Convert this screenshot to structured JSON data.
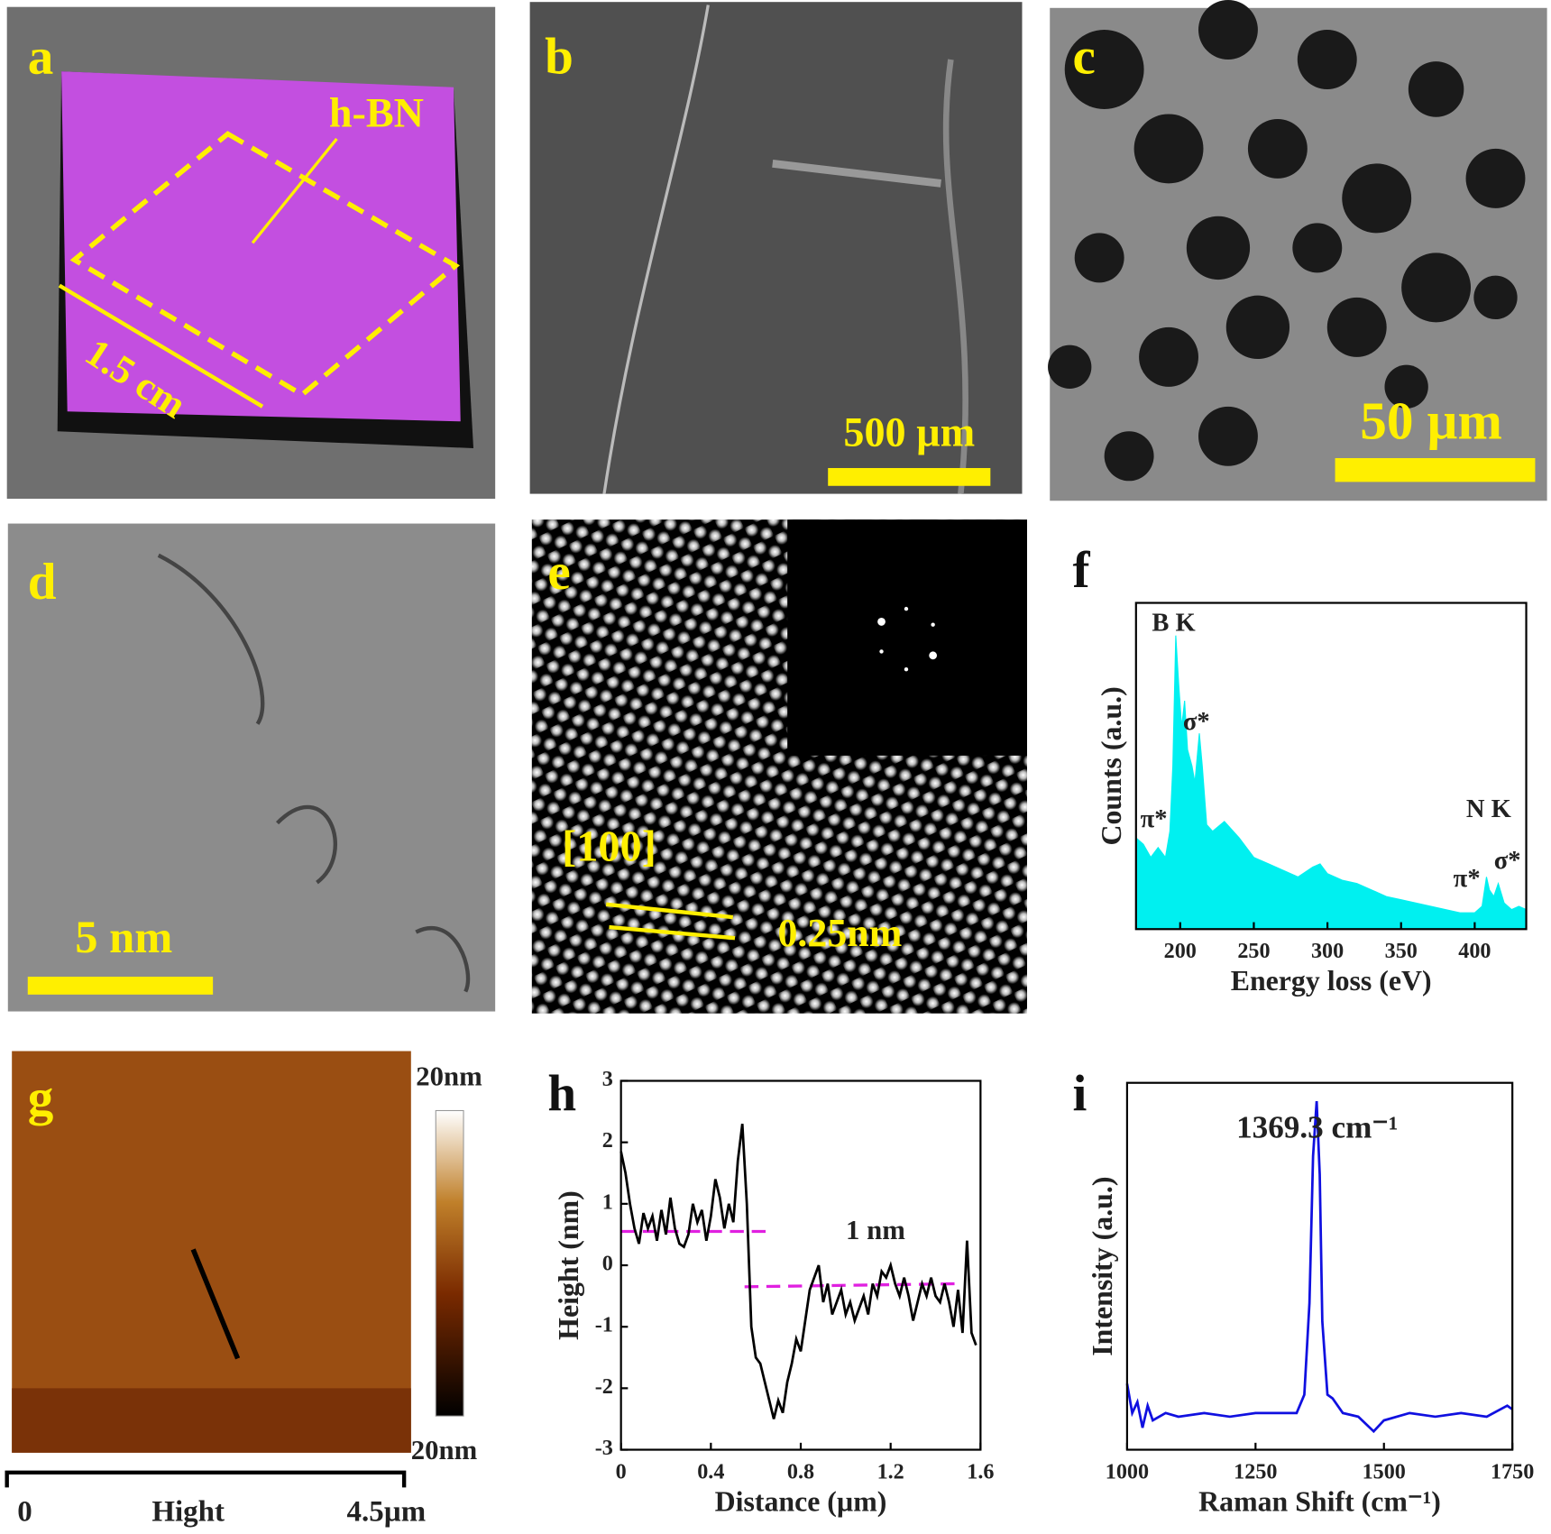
{
  "panel_labels": [
    "a",
    "b",
    "c",
    "d",
    "e",
    "f",
    "g",
    "h",
    "i"
  ],
  "images": {
    "a": {
      "annotation": "h-BN",
      "dimension": "1.5 cm"
    },
    "b": {
      "scale_bar": "500 µm"
    },
    "c": {
      "scale_bar": "50 µm"
    },
    "d": {
      "scale_bar": "5 nm"
    },
    "e": {
      "direction": "[100]",
      "spacing": "0.25nm"
    },
    "g": {
      "colorbar_max": "20nm",
      "colorbar_min": "20nm",
      "axis_start": "0",
      "axis_label": "Hight",
      "axis_end": "4.5µm"
    }
  },
  "chart_data": [
    {
      "type": "area",
      "x_label": "Energy loss (eV)",
      "y_label": "Counts (a.u.)",
      "color": "#00f0f0",
      "annotations": [
        "B K",
        "σ*",
        "π*",
        "N K",
        "π*",
        "σ*"
      ],
      "xlim": [
        170,
        435
      ],
      "xticks": [
        200,
        250,
        300,
        350,
        400
      ],
      "ylim": [
        0,
        1
      ],
      "x": [
        170,
        175,
        180,
        185,
        190,
        193,
        195,
        197,
        199,
        201,
        203,
        205,
        208,
        210,
        213,
        215,
        218,
        222,
        230,
        240,
        250,
        260,
        270,
        280,
        290,
        295,
        300,
        310,
        320,
        330,
        340,
        350,
        360,
        370,
        380,
        390,
        400,
        405,
        408,
        410,
        413,
        416,
        420,
        425,
        430,
        435
      ],
      "values": [
        0.28,
        0.26,
        0.22,
        0.25,
        0.22,
        0.3,
        0.5,
        0.9,
        0.75,
        0.62,
        0.7,
        0.55,
        0.5,
        0.45,
        0.6,
        0.5,
        0.32,
        0.3,
        0.33,
        0.28,
        0.22,
        0.2,
        0.18,
        0.16,
        0.19,
        0.2,
        0.17,
        0.15,
        0.14,
        0.12,
        0.1,
        0.09,
        0.08,
        0.07,
        0.06,
        0.05,
        0.05,
        0.07,
        0.16,
        0.12,
        0.1,
        0.14,
        0.08,
        0.06,
        0.07,
        0.06
      ]
    },
    {
      "type": "line",
      "x_label": "Distance (µm)",
      "y_label": "Height (nm)",
      "color": "#000000",
      "annotations": [
        "1 nm"
      ],
      "xlim": [
        0,
        1.6
      ],
      "xticks": [
        0,
        0.4,
        0.8,
        1.2,
        1.6
      ],
      "ylim": [
        -3,
        3
      ],
      "yticks": [
        -3,
        -2,
        -1,
        0,
        1,
        2,
        3
      ],
      "x": [
        0,
        0.02,
        0.04,
        0.06,
        0.08,
        0.1,
        0.12,
        0.14,
        0.16,
        0.18,
        0.2,
        0.22,
        0.24,
        0.26,
        0.28,
        0.3,
        0.32,
        0.34,
        0.36,
        0.38,
        0.4,
        0.42,
        0.44,
        0.46,
        0.48,
        0.5,
        0.52,
        0.54,
        0.56,
        0.58,
        0.6,
        0.62,
        0.64,
        0.66,
        0.68,
        0.7,
        0.72,
        0.74,
        0.76,
        0.78,
        0.8,
        0.82,
        0.84,
        0.86,
        0.88,
        0.9,
        0.92,
        0.94,
        0.96,
        0.98,
        1.0,
        1.02,
        1.04,
        1.06,
        1.08,
        1.1,
        1.12,
        1.14,
        1.16,
        1.18,
        1.2,
        1.22,
        1.24,
        1.26,
        1.28,
        1.3,
        1.32,
        1.34,
        1.36,
        1.38,
        1.4,
        1.42,
        1.44,
        1.46,
        1.48,
        1.5,
        1.52,
        1.54,
        1.56,
        1.58
      ],
      "values": [
        1.85,
        1.5,
        1.0,
        0.6,
        0.35,
        0.85,
        0.6,
        0.8,
        0.4,
        0.9,
        0.5,
        1.1,
        0.6,
        0.35,
        0.3,
        0.5,
        1.0,
        0.7,
        0.9,
        0.4,
        0.8,
        1.4,
        1.1,
        0.6,
        1.0,
        0.7,
        1.7,
        2.3,
        1.0,
        -1.0,
        -1.5,
        -1.6,
        -1.9,
        -2.2,
        -2.5,
        -2.2,
        -2.4,
        -1.9,
        -1.6,
        -1.2,
        -1.4,
        -0.9,
        -0.4,
        -0.2,
        0.0,
        -0.6,
        -0.3,
        -0.8,
        -0.6,
        -0.4,
        -0.8,
        -0.6,
        -0.9,
        -0.7,
        -0.5,
        -0.8,
        -0.3,
        -0.5,
        -0.1,
        -0.2,
        0.0,
        -0.3,
        -0.5,
        -0.2,
        -0.5,
        -0.9,
        -0.6,
        -0.3,
        -0.5,
        -0.2,
        -0.5,
        -0.6,
        -0.3,
        -0.6,
        -1.0,
        -0.4,
        -1.1,
        0.4,
        -1.1,
        -1.3
      ],
      "reference_lines": [
        {
          "color": "#e020e0",
          "x": [
            0,
            0.65
          ],
          "values": [
            0.55,
            0.55
          ]
        },
        {
          "color": "#e020e0",
          "x": [
            0.55,
            1.5
          ],
          "values": [
            -0.35,
            -0.3
          ]
        }
      ]
    },
    {
      "type": "line",
      "x_label": "Raman Shift (cm⁻¹)",
      "y_label": "Intensity (a.u.)",
      "color": "#1010e0",
      "annotations": [
        "1369.3 cm⁻¹"
      ],
      "xlim": [
        1000,
        1750
      ],
      "xticks": [
        1000,
        1250,
        1500,
        1750
      ],
      "ylim": [
        0,
        1
      ],
      "x": [
        1000,
        1010,
        1020,
        1030,
        1040,
        1050,
        1075,
        1100,
        1150,
        1200,
        1250,
        1300,
        1330,
        1345,
        1355,
        1362,
        1369,
        1375,
        1380,
        1390,
        1400,
        1420,
        1450,
        1480,
        1500,
        1550,
        1600,
        1650,
        1700,
        1740,
        1750
      ],
      "values": [
        0.18,
        0.1,
        0.13,
        0.06,
        0.12,
        0.08,
        0.1,
        0.09,
        0.1,
        0.09,
        0.1,
        0.1,
        0.1,
        0.15,
        0.4,
        0.8,
        0.95,
        0.75,
        0.35,
        0.15,
        0.14,
        0.1,
        0.09,
        0.05,
        0.08,
        0.1,
        0.09,
        0.1,
        0.09,
        0.12,
        0.11
      ]
    }
  ]
}
